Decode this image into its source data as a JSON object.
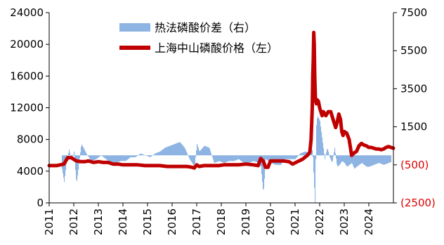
{
  "chart_data": {
    "type": "line",
    "title": "",
    "x_tick_labels": [
      "2011",
      "2012",
      "2013",
      "2014",
      "2015",
      "2016",
      "2017",
      "2018",
      "2019",
      "2020",
      "2021",
      "2022",
      "2023",
      "2024"
    ],
    "x_range": [
      2011.0,
      2025.0
    ],
    "left_axis": {
      "tick_labels": [
        "0",
        "4000",
        "8000",
        "12000",
        "16000",
        "20000",
        "24000"
      ],
      "range": [
        0,
        24000
      ]
    },
    "right_axis": {
      "tick_labels": [
        "(2500)",
        "(500)",
        "1500",
        "3500",
        "5500",
        "7500"
      ],
      "range": [
        -2500,
        7500
      ]
    },
    "legend": {
      "placement": "top-center",
      "items": [
        "热法磷酸价差（右）",
        "上海中山磷酸价格（左）"
      ]
    },
    "series": [
      {
        "name": "上海中山磷酸价格（左）",
        "axis": "left",
        "color": "#c00000",
        "x": [
          2011.0,
          2011.3,
          2011.6,
          2011.75,
          2011.9,
          2012.1,
          2012.3,
          2012.45,
          2012.6,
          2012.8,
          2013.0,
          2013.2,
          2013.4,
          2013.6,
          2013.8,
          2014.0,
          2014.3,
          2014.6,
          2014.9,
          2015.2,
          2015.5,
          2015.8,
          2016.0,
          2016.3,
          2016.6,
          2016.8,
          2016.9,
          2017.0,
          2017.1,
          2017.3,
          2017.5,
          2017.7,
          2017.9,
          2018.1,
          2018.4,
          2018.7,
          2019.0,
          2019.3,
          2019.5,
          2019.6,
          2019.7,
          2019.8,
          2019.9,
          2020.0,
          2020.2,
          2020.5,
          2020.75,
          2020.9,
          2021.1,
          2021.3,
          2021.5,
          2021.6,
          2021.65,
          2021.7,
          2021.72,
          2021.74,
          2021.76,
          2021.78,
          2021.8,
          2021.83,
          2021.87,
          2021.9,
          2021.95,
          2022.0,
          2022.05,
          2022.1,
          2022.15,
          2022.25,
          2022.35,
          2022.45,
          2022.55,
          2022.6,
          2022.65,
          2022.7,
          2022.78,
          2022.85,
          2022.9,
          2022.95,
          2023.0,
          2023.1,
          2023.2,
          2023.3,
          2023.4,
          2023.5,
          2023.6,
          2023.7,
          2023.8,
          2023.9,
          2024.0,
          2024.1,
          2024.2,
          2024.3,
          2024.4,
          2024.5,
          2024.6,
          2024.7,
          2024.8,
          2024.9,
          2025.0
        ],
        "values": [
          4700,
          4700,
          4900,
          5700,
          5700,
          5300,
          5200,
          5200,
          5300,
          5100,
          5200,
          5100,
          5100,
          4900,
          4900,
          4800,
          4800,
          4800,
          4700,
          4700,
          4700,
          4600,
          4600,
          4600,
          4600,
          4500,
          4400,
          4800,
          4600,
          4700,
          4700,
          4700,
          4700,
          4800,
          4800,
          4800,
          4900,
          4800,
          4700,
          5600,
          5300,
          4500,
          4500,
          5300,
          5300,
          5300,
          5200,
          4900,
          5200,
          5500,
          6000,
          6400,
          8000,
          12000,
          16000,
          18000,
          21500,
          20000,
          16000,
          13000,
          12500,
          13000,
          12800,
          12000,
          11500,
          11000,
          11500,
          11000,
          11500,
          11500,
          10500,
          10000,
          9500,
          10000,
          11200,
          10500,
          9000,
          8500,
          9000,
          8800,
          8000,
          6000,
          6300,
          6500,
          7200,
          7500,
          7300,
          7200,
          7000,
          7000,
          6900,
          6800,
          6800,
          6700,
          6800,
          7000,
          7100,
          7000,
          6900
        ]
      },
      {
        "name": "热法磷酸价差（右）",
        "axis": "right",
        "color": "#8db4e2",
        "x": [
          2011.0,
          2011.2,
          2011.4,
          2011.5,
          2011.6,
          2011.7,
          2011.8,
          2011.9,
          2012.0,
          2012.1,
          2012.3,
          2012.5,
          2012.7,
          2012.9,
          2013.1,
          2013.3,
          2013.5,
          2013.7,
          2013.9,
          2014.1,
          2014.3,
          2014.5,
          2014.7,
          2014.9,
          2015.1,
          2015.3,
          2015.5,
          2015.7,
          2015.9,
          2016.1,
          2016.3,
          2016.5,
          2016.7,
          2016.9,
          2017.0,
          2017.1,
          2017.3,
          2017.5,
          2017.7,
          2017.9,
          2018.1,
          2018.3,
          2018.5,
          2018.7,
          2018.9,
          2019.1,
          2019.3,
          2019.5,
          2019.6,
          2019.7,
          2019.8,
          2019.9,
          2020.0,
          2020.2,
          2020.4,
          2020.6,
          2020.8,
          2021.0,
          2021.2,
          2021.4,
          2021.6,
          2021.7,
          2021.8,
          2021.85,
          2021.9,
          2022.0,
          2022.1,
          2022.2,
          2022.3,
          2022.4,
          2022.5,
          2022.6,
          2022.7,
          2022.8,
          2022.9,
          2023.0,
          2023.1,
          2023.2,
          2023.3,
          2023.4,
          2023.5,
          2023.6,
          2023.7,
          2023.8,
          2023.9,
          2024.0,
          2024.2,
          2024.4,
          2024.6,
          2024.8,
          2025.0
        ],
        "values": [
          400,
          -200,
          700,
          -600,
          -1400,
          -300,
          300,
          -300,
          200,
          -1500,
          600,
          100,
          -300,
          -200,
          0,
          -200,
          -400,
          -400,
          -300,
          -300,
          -100,
          -100,
          100,
          0,
          -100,
          100,
          200,
          400,
          500,
          600,
          700,
          400,
          -200,
          -600,
          600,
          200,
          500,
          400,
          -400,
          -300,
          -400,
          -300,
          -300,
          -200,
          -400,
          -400,
          -300,
          -400,
          -600,
          -2000,
          -200,
          -300,
          -400,
          -500,
          -500,
          -200,
          -200,
          -200,
          100,
          200,
          100,
          300,
          -2500,
          1500,
          2100,
          1800,
          800,
          -200,
          400,
          -100,
          -400,
          400,
          -600,
          -500,
          -300,
          -400,
          -600,
          -500,
          -400,
          -700,
          -600,
          -500,
          -400,
          -500,
          -600,
          -600,
          -500,
          -400,
          -500,
          -400,
          -300
        ]
      }
    ]
  }
}
